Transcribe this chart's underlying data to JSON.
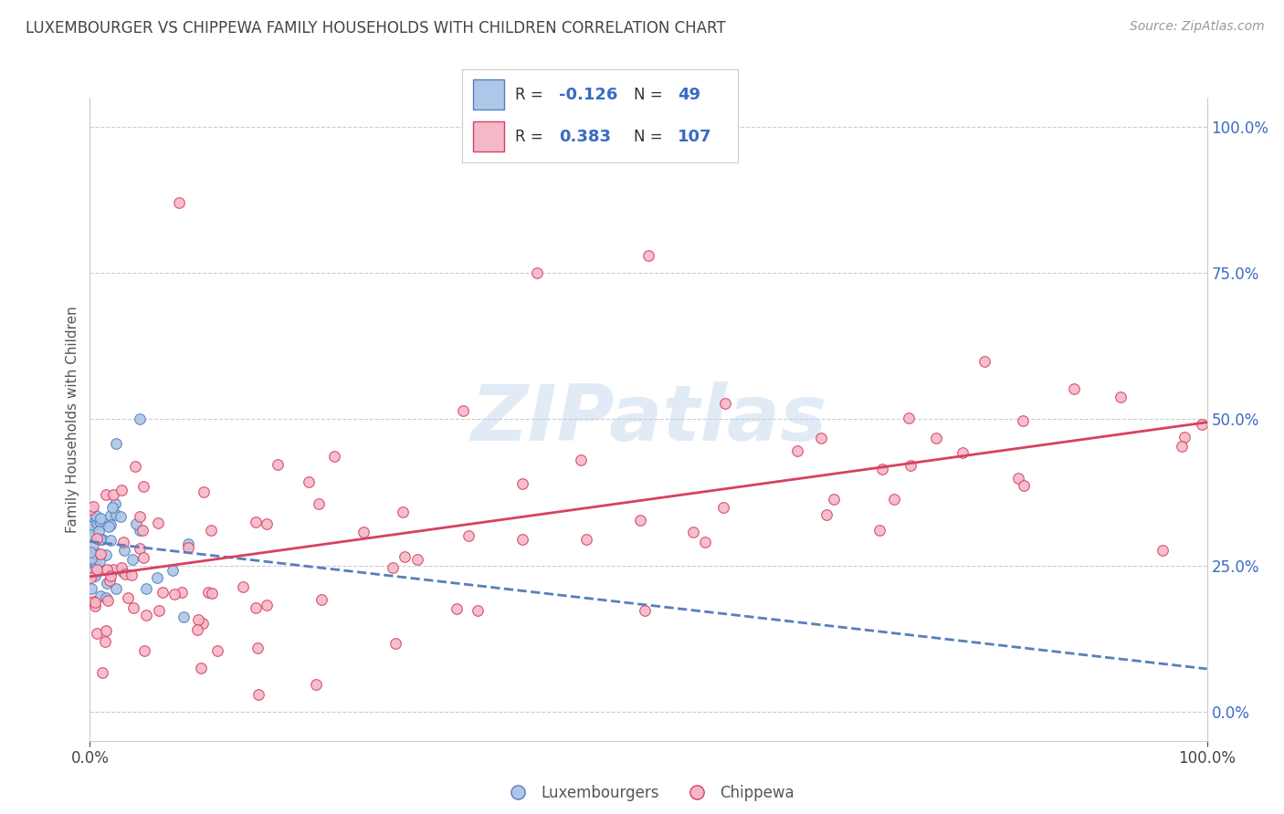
{
  "title": "LUXEMBOURGER VS CHIPPEWA FAMILY HOUSEHOLDS WITH CHILDREN CORRELATION CHART",
  "source_text": "Source: ZipAtlas.com",
  "ylabel": "Family Households with Children",
  "watermark": "ZIPatlas",
  "lux_R": -0.126,
  "lux_N": 49,
  "chip_R": 0.383,
  "chip_N": 107,
  "lux_color": "#aec6e8",
  "chip_color": "#f4b8c8",
  "lux_line_color": "#5580bb",
  "chip_line_color": "#d94060",
  "background_color": "#ffffff",
  "grid_color": "#cccccc",
  "title_color": "#444444",
  "axis_label_color": "#555555",
  "tick_label_color": "#444444",
  "right_axis_color": "#3a6bc4",
  "xlim": [
    0,
    1
  ],
  "ylim": [
    -0.05,
    1.05
  ],
  "y_ticks_right": [
    0.0,
    0.25,
    0.5,
    0.75,
    1.0
  ],
  "y_tick_labels_right": [
    "0.0%",
    "25.0%",
    "50.0%",
    "75.0%",
    "100.0%"
  ]
}
